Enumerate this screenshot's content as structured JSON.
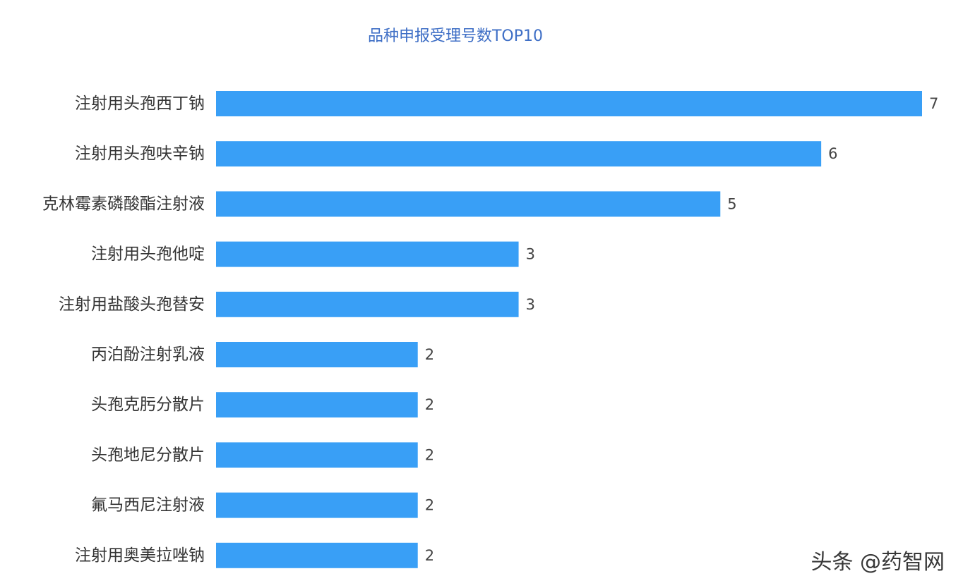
{
  "chart_data": {
    "type": "bar",
    "orientation": "horizontal",
    "title": "品种申报受理号数TOP10",
    "categories": [
      "注射用头孢西丁钠",
      "注射用头孢呋辛钠",
      "克林霉素磷酸酯注射液",
      "注射用头孢他啶",
      "注射用盐酸头孢替安",
      "丙泊酚注射乳液",
      "头孢克肟分散片",
      "头孢地尼分散片",
      "氟马西尼注射液",
      "注射用奥美拉唑钠"
    ],
    "values": [
      7,
      6,
      5,
      3,
      3,
      2,
      2,
      2,
      2,
      2
    ],
    "xlim": [
      0,
      7
    ],
    "grid": false,
    "legend": "none",
    "bar_color": "#399ff6",
    "title_color": "#3f6fc6"
  },
  "watermark": "头条 @药智网"
}
